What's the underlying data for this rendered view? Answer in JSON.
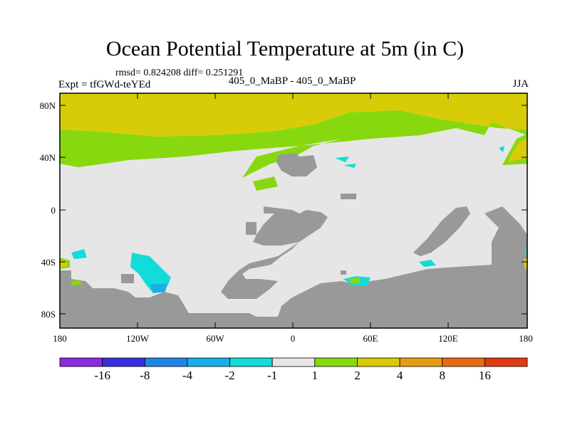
{
  "title": "Ocean Potential Temperature at 5m (in C)",
  "stats": "rmsd= 0.824208 diff= 0.251291",
  "expt": "Expt = tfGWd-teYEd",
  "cases": "405_0_MaBP - 405_0_MaBP",
  "season": "JJA",
  "lat_ticks": [
    "80N",
    "40N",
    "0",
    "40S",
    "80S"
  ],
  "lon_ticks": [
    "180",
    "120W",
    "60W",
    "0",
    "60E",
    "120E",
    "180"
  ],
  "colorbar": {
    "labels": [
      "-16",
      "-8",
      "-4",
      "-2",
      "-1",
      "1",
      "2",
      "4",
      "8",
      "16"
    ],
    "colors": [
      "#8a2be2",
      "#3a2ee0",
      "#1f86e6",
      "#17b0e6",
      "#12dcd8",
      "#e6e6e6",
      "#88d810",
      "#d8cc08",
      "#e69c10",
      "#e66a10",
      "#e03a10"
    ]
  },
  "map_colors": {
    "land": "#999999",
    "ocean_neutral": "#e6e6e6",
    "warm_1_2": "#88d810",
    "warm_2_4": "#d8cc08",
    "cool_1_2": "#12dcd8",
    "cool_2_4": "#17b0e6"
  }
}
